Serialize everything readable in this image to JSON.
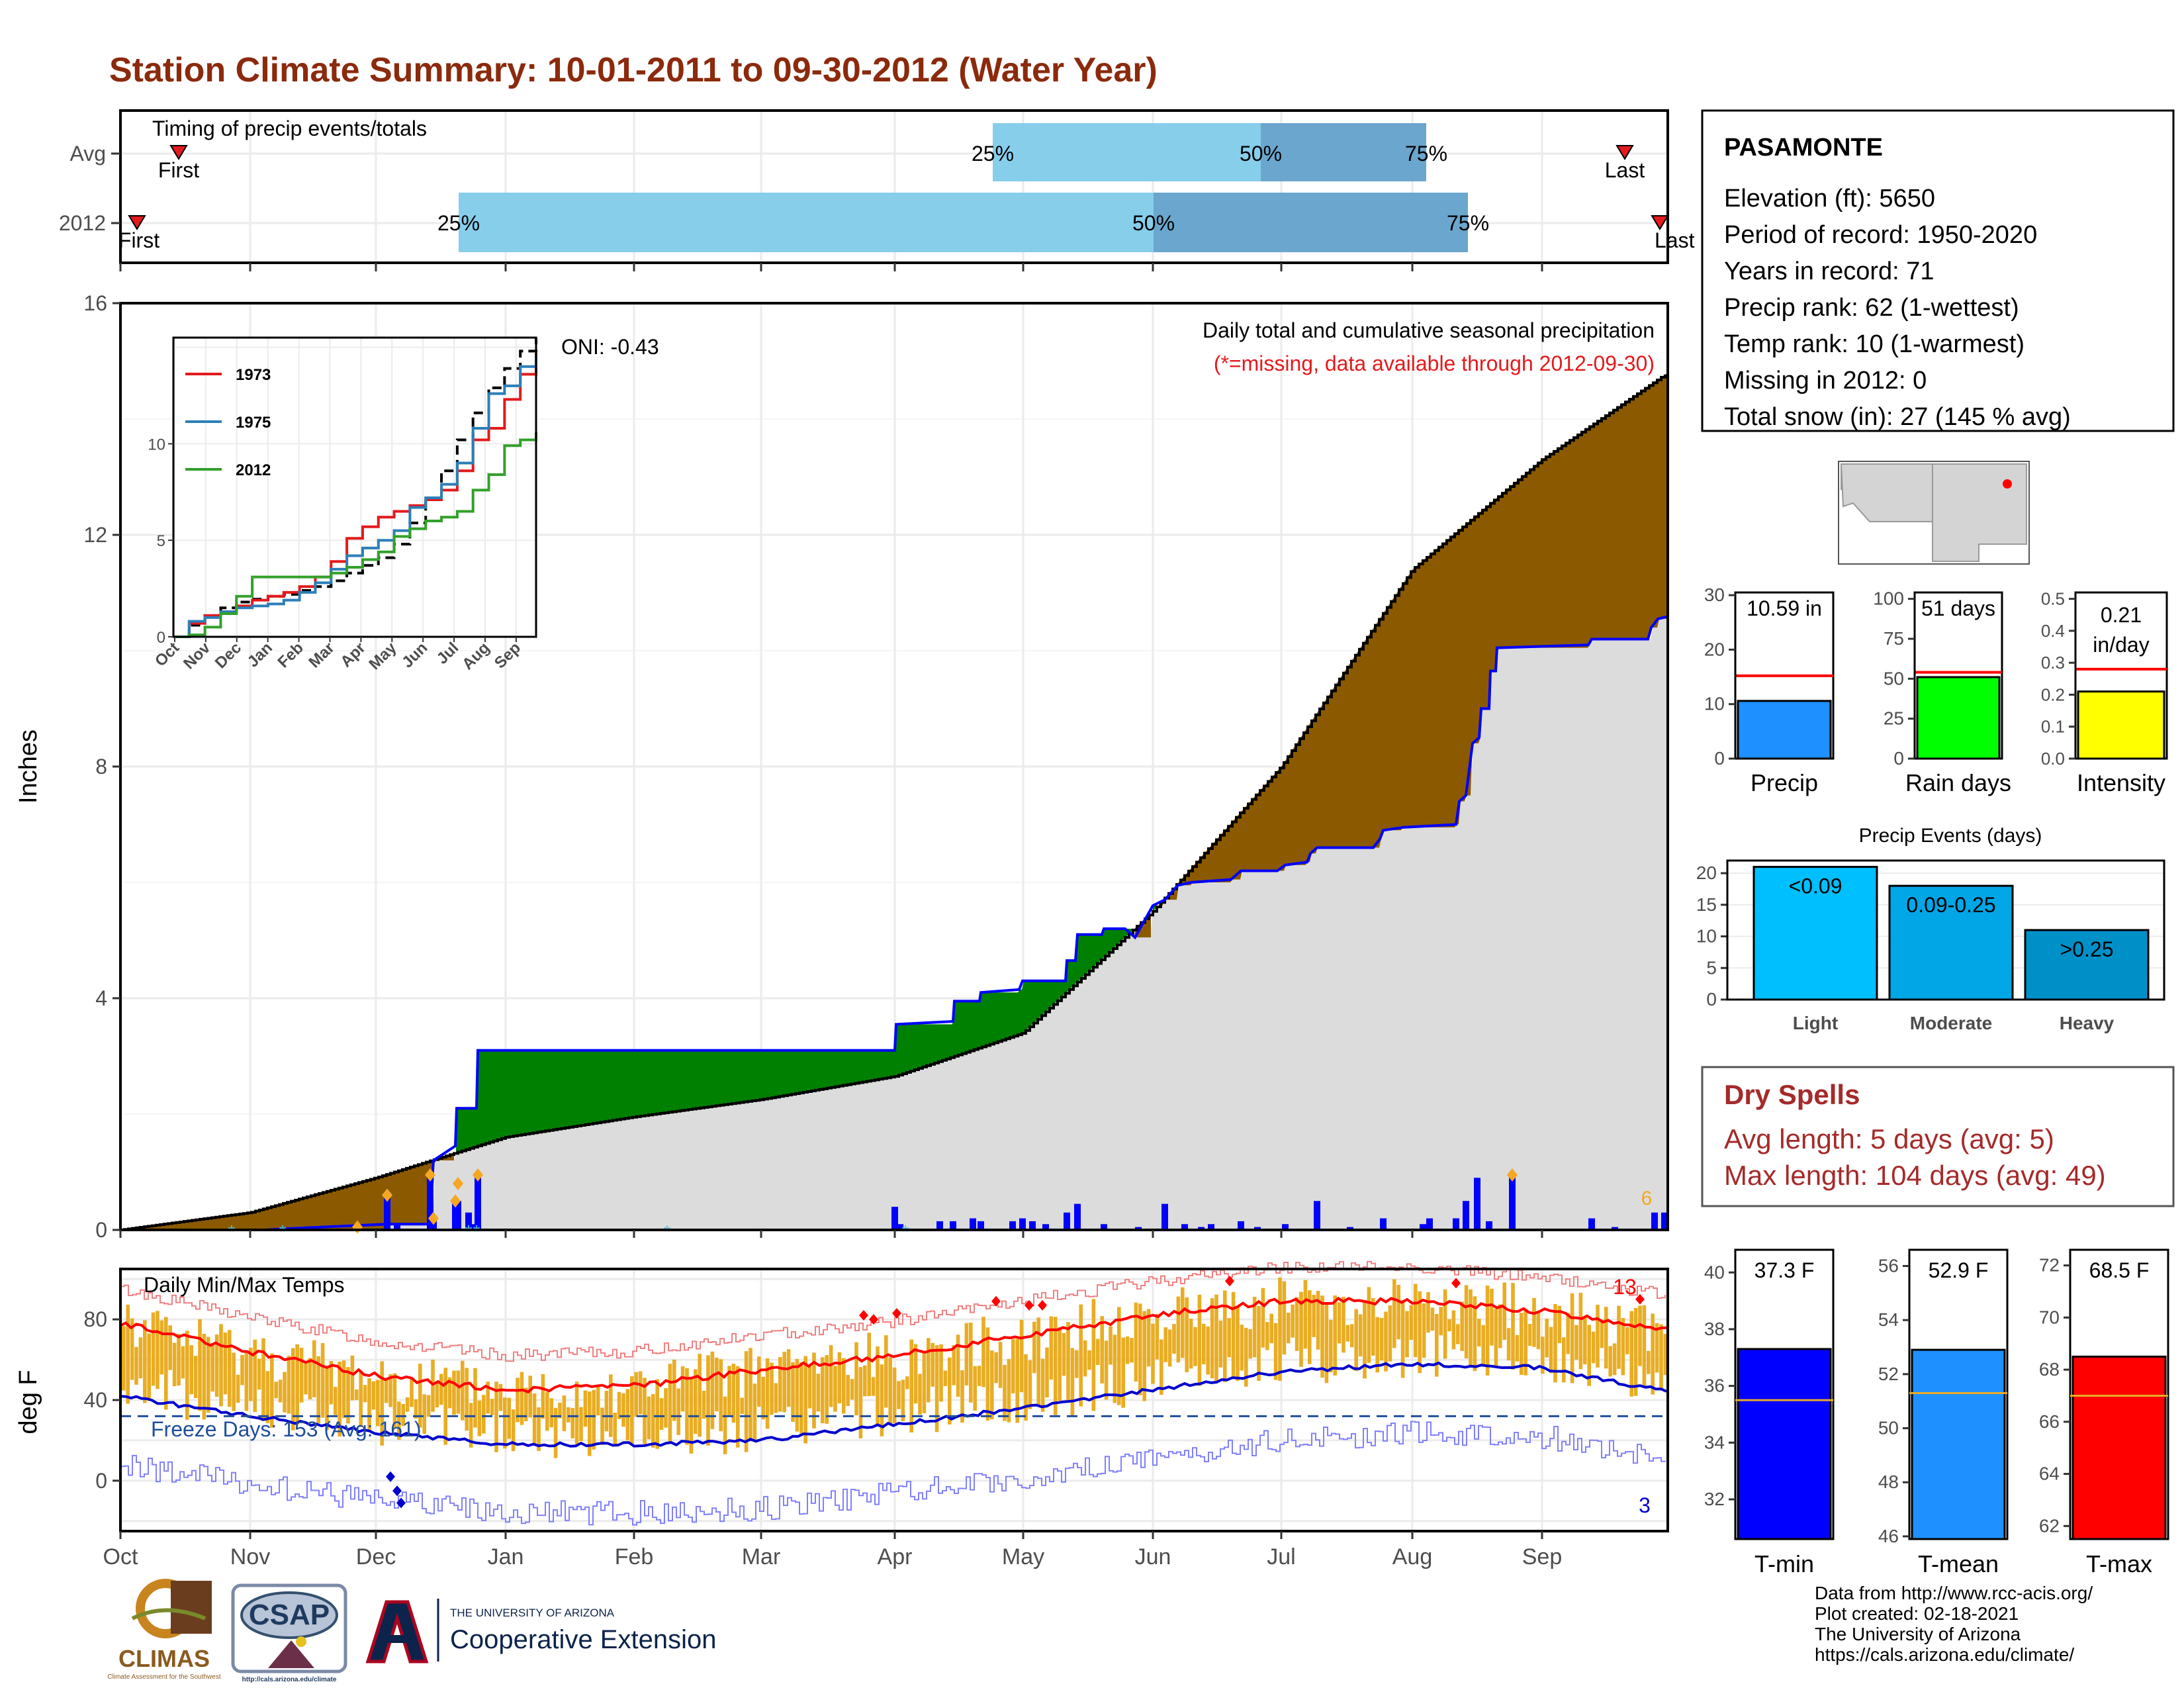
{
  "title": "Station Climate Summary: 10-01-2011 to 09-30-2012 (Water Year)",
  "timing": {
    "label": "Timing of precip events/totals",
    "rows": [
      "Avg",
      "2012"
    ],
    "avg": {
      "first": "First",
      "last": "Last",
      "p25": "25%",
      "p50": "50%",
      "p75": "75%"
    },
    "y2012": {
      "first": "First",
      "last": "Last",
      "p25": "25%",
      "p50": "50%",
      "p75": "75%"
    }
  },
  "station": {
    "name": "PASAMONTE",
    "lines": [
      "Elevation (ft): 5650",
      "Period of record: 1950-2020",
      "Years in record: 71",
      "Precip rank: 62 (1-wettest)",
      "Temp rank: 10 (1-warmest)",
      "Missing in 2012: 0",
      "Total snow (in): 27 (145 % avg)"
    ]
  },
  "precip_panel": {
    "ylabel": "Inches",
    "yticks": [
      "0",
      "4",
      "8",
      "12",
      "16"
    ],
    "title": "Daily total and cumulative seasonal precipitation",
    "note": "(*=missing, data available through 2012-09-30)",
    "oni": "ONI: -0.43",
    "max_daily_count": "6"
  },
  "inset": {
    "yticks": [
      "0",
      "5",
      "10"
    ],
    "months": [
      "Oct",
      "Nov",
      "Dec",
      "Jan",
      "Feb",
      "Mar",
      "Apr",
      "May",
      "Jun",
      "Jul",
      "Aug",
      "Sep"
    ],
    "legend": [
      "1973",
      "1975",
      "2012"
    ],
    "colors": [
      "#e31a1c",
      "#2c7fb8",
      "#33a02c"
    ]
  },
  "temp_panel": {
    "ylabel": "deg F",
    "label": "Daily Min/Max Temps",
    "yticks": [
      "0",
      "40",
      "80"
    ],
    "freeze": "Freeze Days: 153 (Avg: 161)",
    "high_count": "13",
    "low_count": "3"
  },
  "months": [
    "Oct",
    "Nov",
    "Dec",
    "Jan",
    "Feb",
    "Mar",
    "Apr",
    "May",
    "Jun",
    "Jul",
    "Aug",
    "Sep"
  ],
  "mini_precip": {
    "yticks": [
      "0",
      "10",
      "20",
      "30"
    ],
    "value_label": "10.59 in",
    "xlabel": "Precip"
  },
  "mini_rain": {
    "yticks": [
      "0",
      "25",
      "50",
      "75",
      "100"
    ],
    "value_label": "51 days",
    "xlabel": "Rain days"
  },
  "mini_int": {
    "yticks": [
      "0.0",
      "0.1",
      "0.2",
      "0.3",
      "0.4",
      "0.5"
    ],
    "value_line1": "0.21",
    "value_line2": "in/day",
    "xlabel": "Intensity"
  },
  "events": {
    "title": "Precip Events (days)",
    "yticks": [
      "0",
      "5",
      "10",
      "15",
      "20"
    ],
    "bars": [
      {
        "label": "<0.09",
        "cat": "Light",
        "value": 21,
        "color": "#00bfff"
      },
      {
        "label": "0.09-0.25",
        "cat": "Moderate",
        "value": 18,
        "color": "#00a6e6"
      },
      {
        "label": ">0.25",
        "cat": "Heavy",
        "value": 11,
        "color": "#0090c8"
      }
    ]
  },
  "dry": {
    "title": "Dry Spells",
    "line1": "Avg length: 5 days (avg: 5)",
    "line2": "Max length: 104 days (avg: 49)"
  },
  "temps": {
    "tmin": {
      "label": "37.3 F",
      "xlabel": "T-min",
      "yticks": [
        "32",
        "34",
        "36",
        "38",
        "40"
      ]
    },
    "tmean": {
      "label": "52.9 F",
      "xlabel": "T-mean",
      "yticks": [
        "46",
        "48",
        "50",
        "52",
        "54",
        "56"
      ]
    },
    "tmax": {
      "label": "68.5 F",
      "xlabel": "T-max",
      "yticks": [
        "62",
        "64",
        "66",
        "68",
        "70",
        "72"
      ]
    }
  },
  "logos": {
    "climas": "CLIMAS",
    "climas_sub": "Climate Assessment for the Southwest",
    "csap": "CSAP",
    "csap_url": "http://cals.arizona.edu/climate",
    "ua_line1": "THE UNIVERSITY OF ARIZONA",
    "ua_line2": "Cooperative Extension"
  },
  "credits": [
    "Data from http://www.rcc-acis.org/",
    "Plot created: 02-18-2021",
    "The University of Arizona",
    "https://cals.arizona.edu/climate/"
  ],
  "chart_data": [
    {
      "type": "line",
      "name": "cumulative precipitation",
      "xlabel": "",
      "ylabel": "Inches",
      "ylim": [
        0,
        16
      ],
      "x": [
        "Oct",
        "Nov",
        "Dec",
        "Jan",
        "Feb",
        "Mar",
        "Apr",
        "May",
        "Jun",
        "Jul",
        "Aug",
        "Sep",
        "Sep-30"
      ],
      "series": [
        {
          "values": [
            0,
            0.3,
            0.9,
            1.6,
            1.95,
            2.25,
            2.65,
            3.4,
            5.5,
            8.0,
            11.4,
            13.3,
            14.8
          ]
        },
        {
          "values": [
            0,
            0,
            0.1,
            3.1,
            3.1,
            3.1,
            3.6,
            4.6,
            6.0,
            6.2,
            7.6,
            10.2,
            10.59
          ]
        }
      ]
    },
    {
      "type": "line",
      "name": "daily temperatures",
      "ylabel": "deg F",
      "ylim": [
        -25,
        105
      ],
      "x": [
        "Oct",
        "Nov",
        "Dec",
        "Jan",
        "Feb",
        "Mar",
        "Apr",
        "May",
        "Jun",
        "Jul",
        "Aug",
        "Sep",
        "Sep-30"
      ],
      "series": [
        {
          "values": [
            78,
            64,
            52,
            45,
            47,
            55,
            62,
            72,
            82,
            89,
            89,
            84,
            75
          ]
        },
        {
          "values": [
            42,
            32,
            24,
            18,
            18,
            20,
            28,
            36,
            45,
            54,
            58,
            56,
            44
          ]
        }
      ]
    },
    {
      "type": "bar",
      "name": "precip events",
      "categories": [
        "Light",
        "Moderate",
        "Heavy"
      ],
      "values": [
        21,
        18,
        11
      ],
      "ylim": [
        0,
        22
      ]
    },
    {
      "type": "bar",
      "name": "summary bars",
      "categories": [
        "Precip",
        "Rain days",
        "Intensity",
        "T-min",
        "T-mean",
        "T-max"
      ],
      "values": [
        10.59,
        51,
        0.21,
        37.3,
        52.9,
        68.5
      ]
    }
  ]
}
